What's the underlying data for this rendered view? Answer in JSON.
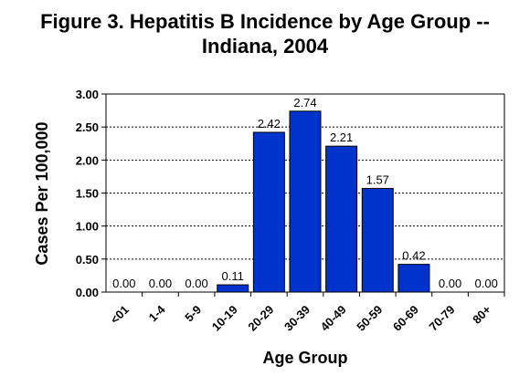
{
  "chart_data": {
    "type": "bar",
    "title_lines": [
      "Figure 3. Hepatitis B Incidence by Age Group --",
      "Indiana, 2004"
    ],
    "xlabel": "Age Group",
    "ylabel": "Cases Per 100,000",
    "categories": [
      "<01",
      "1-4",
      "5-9",
      "10-19",
      "20-29",
      "30-39",
      "40-49",
      "50-59",
      "60-69",
      "70-79",
      "80+"
    ],
    "values": [
      0.0,
      0.0,
      0.0,
      0.11,
      2.42,
      2.74,
      2.21,
      1.57,
      0.42,
      0.0,
      0.0
    ],
    "value_labels": [
      "0.00",
      "0.00",
      "0.00",
      "0.11",
      "2.42",
      "2.74",
      "2.21",
      "1.57",
      "0.42",
      "0.00",
      "0.00"
    ],
    "yticks": [
      "0.00",
      "0.50",
      "1.00",
      "1.50",
      "2.00",
      "2.50",
      "3.00"
    ],
    "ylim": [
      0,
      3
    ],
    "grid": true,
    "bar_color": "#0033cc"
  }
}
